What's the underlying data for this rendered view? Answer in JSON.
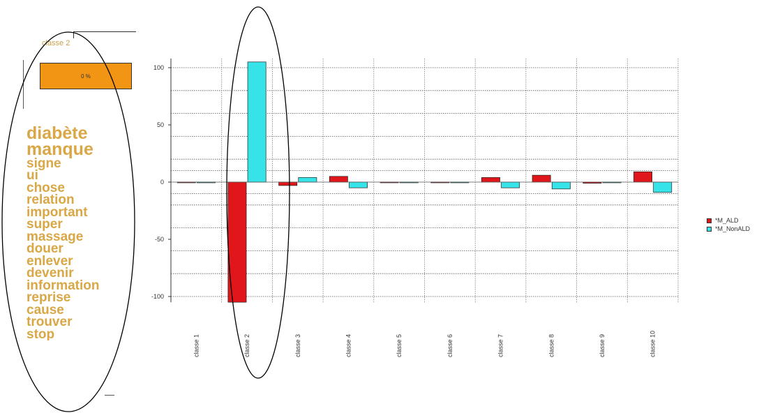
{
  "left_panel": {
    "class_label": "classe 2",
    "percent": "0 %",
    "percent_color": "#f39514",
    "word_color": "#d9a746",
    "words": [
      {
        "text": "diabète",
        "size": 25
      },
      {
        "text": "manque",
        "size": 25
      },
      {
        "text": "signe",
        "size": 19
      },
      {
        "text": "ui",
        "size": 19
      },
      {
        "text": "chose",
        "size": 19
      },
      {
        "text": "relation",
        "size": 19
      },
      {
        "text": "important",
        "size": 19
      },
      {
        "text": "super",
        "size": 19
      },
      {
        "text": "massage",
        "size": 19
      },
      {
        "text": "douer",
        "size": 19
      },
      {
        "text": "enlever",
        "size": 19
      },
      {
        "text": "devenir",
        "size": 19
      },
      {
        "text": "information",
        "size": 19
      },
      {
        "text": "reprise",
        "size": 19
      },
      {
        "text": "cause",
        "size": 19
      },
      {
        "text": "trouver",
        "size": 19
      },
      {
        "text": "stop",
        "size": 19
      }
    ]
  },
  "chart_data": {
    "type": "bar",
    "title": "",
    "xlabel": "",
    "ylabel": "",
    "ylim": [
      -105,
      108
    ],
    "yticks": [
      100,
      50,
      0,
      -50,
      -100
    ],
    "grid": true,
    "legend_position": "right",
    "categories": [
      "classe 1",
      "classe 2",
      "classe 3",
      "classe 4",
      "classe 5",
      "classe 6",
      "classe 7",
      "classe 8",
      "classe 9",
      "classe 10"
    ],
    "series": [
      {
        "name": "*M_ALD",
        "color": "#e0161a",
        "values": [
          0,
          -105,
          -3,
          5,
          0,
          0,
          4,
          6,
          -1,
          9
        ]
      },
      {
        "name": "*M_NonALD",
        "color": "#35e3e8",
        "values": [
          0,
          105,
          4,
          -5,
          0,
          0,
          -5,
          -6,
          0,
          -9
        ]
      }
    ]
  }
}
